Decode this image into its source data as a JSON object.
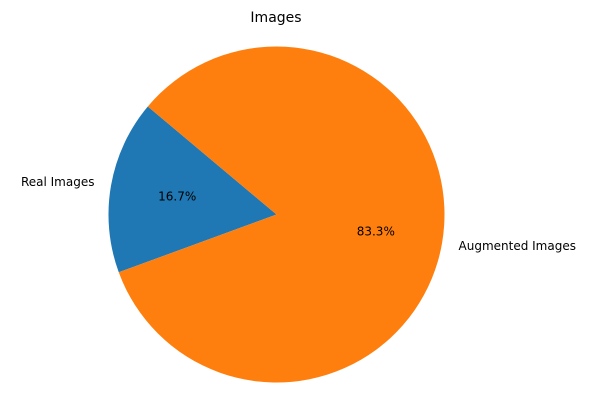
{
  "chart_data": {
    "type": "pie",
    "title": "Images",
    "labels": [
      "Real Images",
      "Augmented Images"
    ],
    "values": [
      16.7,
      83.3
    ],
    "percent_labels": [
      "16.7%",
      "83.3%"
    ],
    "colors": [
      "#1f77b4",
      "#ff7f0e"
    ],
    "start_angle_deg": 140,
    "direction": "counterclockwise"
  }
}
